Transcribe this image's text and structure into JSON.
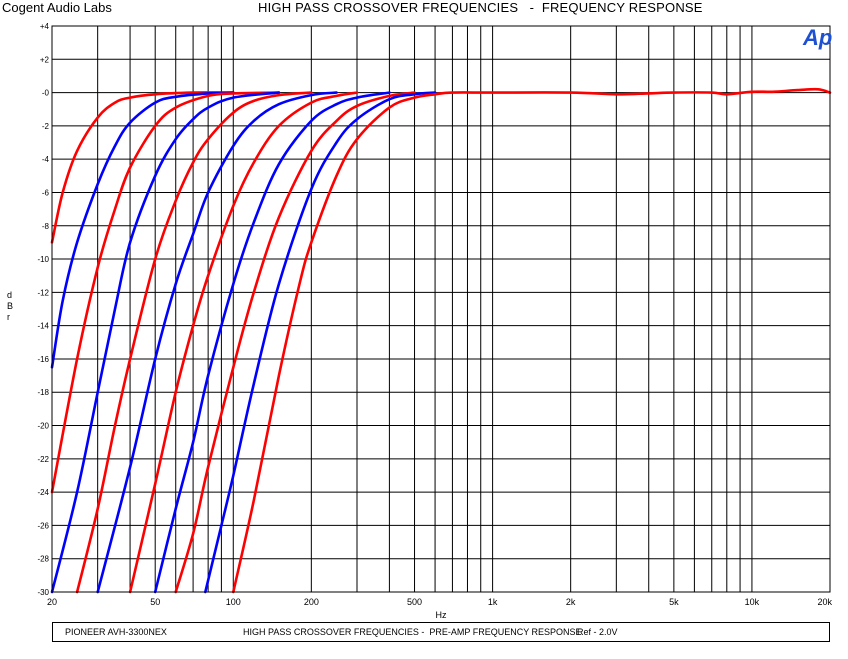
{
  "header": {
    "company": "Cogent Audio Labs",
    "title": "HIGH PASS CROSSOVER FREQUENCIES   -  FREQUENCY RESPONSE",
    "logo_text": "Ap"
  },
  "footer": {
    "model": "PIONEER AVH-3300NEX",
    "description": "HIGH PASS CROSSOVER FREQUENCIES -  PRE-AMP FREQUENCY RESPONSE",
    "reference": "Ref - 2.0V"
  },
  "colors": {
    "red": "#ff0000",
    "blue": "#0000ff",
    "grid": "#000000",
    "logo": "#1e50d2"
  },
  "chart_data": {
    "type": "line",
    "x_scale": "log",
    "xlim": [
      20,
      20000
    ],
    "ylim": [
      -30,
      4
    ],
    "grid": true,
    "xlabel": "Hz",
    "ylabel": "d B r",
    "x_ticks": [
      {
        "value": 20,
        "label": "20"
      },
      {
        "value": 50,
        "label": "50"
      },
      {
        "value": 100,
        "label": "100"
      },
      {
        "value": 200,
        "label": "200"
      },
      {
        "value": 500,
        "label": "500"
      },
      {
        "value": 1000,
        "label": "1k"
      },
      {
        "value": 2000,
        "label": "2k"
      },
      {
        "value": 5000,
        "label": "5k"
      },
      {
        "value": 10000,
        "label": "10k"
      },
      {
        "value": 20000,
        "label": "20k"
      }
    ],
    "y_ticks": [
      {
        "value": 4,
        "label": "+4"
      },
      {
        "value": 2,
        "label": "+2"
      },
      {
        "value": 0,
        "label": "-0"
      },
      {
        "value": -2,
        "label": "-2"
      },
      {
        "value": -4,
        "label": "-4"
      },
      {
        "value": -6,
        "label": "-6"
      },
      {
        "value": -8,
        "label": "-8"
      },
      {
        "value": -10,
        "label": "-10"
      },
      {
        "value": -12,
        "label": "-12"
      },
      {
        "value": -14,
        "label": "-14"
      },
      {
        "value": -16,
        "label": "-16"
      },
      {
        "value": -18,
        "label": "-18"
      },
      {
        "value": -20,
        "label": "-20"
      },
      {
        "value": -22,
        "label": "-22"
      },
      {
        "value": -24,
        "label": "-24"
      },
      {
        "value": -26,
        "label": "-26"
      },
      {
        "value": -28,
        "label": "-28"
      },
      {
        "value": -30,
        "label": "-30"
      }
    ],
    "series": [
      {
        "color": "red",
        "points": [
          [
            20,
            -9
          ],
          [
            22,
            -6
          ],
          [
            25,
            -3.5
          ],
          [
            30,
            -1.5
          ],
          [
            35,
            -0.6
          ],
          [
            40,
            -0.3
          ],
          [
            50,
            -0.1
          ],
          [
            70,
            0
          ],
          [
            100,
            0
          ]
        ]
      },
      {
        "color": "blue",
        "points": [
          [
            20,
            -16.5
          ],
          [
            22,
            -12.5
          ],
          [
            25,
            -9
          ],
          [
            30,
            -5.5
          ],
          [
            35,
            -3.2
          ],
          [
            40,
            -1.8
          ],
          [
            50,
            -0.6
          ],
          [
            60,
            -0.25
          ],
          [
            80,
            -0.05
          ],
          [
            100,
            0
          ]
        ]
      },
      {
        "color": "red",
        "points": [
          [
            20,
            -24
          ],
          [
            25,
            -16
          ],
          [
            30,
            -10.5
          ],
          [
            35,
            -7
          ],
          [
            40,
            -4.5
          ],
          [
            50,
            -2
          ],
          [
            60,
            -0.9
          ],
          [
            80,
            -0.2
          ],
          [
            100,
            -0.05
          ],
          [
            150,
            0
          ]
        ]
      },
      {
        "color": "blue",
        "points": [
          [
            20,
            -30
          ],
          [
            25,
            -24
          ],
          [
            30,
            -18
          ],
          [
            35,
            -13
          ],
          [
            40,
            -9
          ],
          [
            50,
            -5
          ],
          [
            60,
            -2.8
          ],
          [
            70,
            -1.6
          ],
          [
            80,
            -0.9
          ],
          [
            100,
            -0.3
          ],
          [
            150,
            0
          ]
        ]
      },
      {
        "color": "red",
        "points": [
          [
            25,
            -30
          ],
          [
            30,
            -25
          ],
          [
            35,
            -20
          ],
          [
            40,
            -16
          ],
          [
            50,
            -10
          ],
          [
            60,
            -6.5
          ],
          [
            70,
            -4.2
          ],
          [
            80,
            -2.8
          ],
          [
            100,
            -1.2
          ],
          [
            120,
            -0.5
          ],
          [
            150,
            -0.15
          ],
          [
            200,
            0
          ]
        ]
      },
      {
        "color": "blue",
        "points": [
          [
            30,
            -30
          ],
          [
            40,
            -22.5
          ],
          [
            50,
            -16
          ],
          [
            60,
            -11.5
          ],
          [
            70,
            -8.5
          ],
          [
            80,
            -6
          ],
          [
            100,
            -3.2
          ],
          [
            120,
            -1.7
          ],
          [
            150,
            -0.7
          ],
          [
            200,
            -0.15
          ],
          [
            250,
            0
          ]
        ]
      },
      {
        "color": "red",
        "points": [
          [
            40,
            -30
          ],
          [
            50,
            -23.5
          ],
          [
            60,
            -18
          ],
          [
            70,
            -14
          ],
          [
            80,
            -11
          ],
          [
            100,
            -6.8
          ],
          [
            120,
            -4.2
          ],
          [
            150,
            -2
          ],
          [
            200,
            -0.6
          ],
          [
            250,
            -0.2
          ],
          [
            300,
            0
          ]
        ]
      },
      {
        "color": "blue",
        "points": [
          [
            50,
            -30
          ],
          [
            60,
            -25
          ],
          [
            70,
            -21
          ],
          [
            80,
            -17
          ],
          [
            100,
            -11.5
          ],
          [
            120,
            -7.8
          ],
          [
            150,
            -4.3
          ],
          [
            200,
            -1.7
          ],
          [
            250,
            -0.7
          ],
          [
            300,
            -0.3
          ],
          [
            400,
            0
          ]
        ]
      },
      {
        "color": "red",
        "points": [
          [
            60,
            -30
          ],
          [
            70,
            -26.5
          ],
          [
            80,
            -22.5
          ],
          [
            100,
            -16.5
          ],
          [
            120,
            -12
          ],
          [
            150,
            -7.5
          ],
          [
            200,
            -3.5
          ],
          [
            250,
            -1.7
          ],
          [
            300,
            -0.8
          ],
          [
            400,
            -0.2
          ],
          [
            500,
            0
          ]
        ]
      },
      {
        "color": "blue",
        "points": [
          [
            78,
            -30
          ],
          [
            90,
            -26
          ],
          [
            100,
            -23
          ],
          [
            120,
            -17.5
          ],
          [
            150,
            -11.5
          ],
          [
            200,
            -5.8
          ],
          [
            250,
            -3
          ],
          [
            300,
            -1.6
          ],
          [
            400,
            -0.4
          ],
          [
            500,
            -0.1
          ],
          [
            600,
            0
          ]
        ]
      },
      {
        "color": "red",
        "points": [
          [
            100,
            -30
          ],
          [
            120,
            -24.5
          ],
          [
            150,
            -17
          ],
          [
            180,
            -11.5
          ],
          [
            200,
            -9
          ],
          [
            250,
            -5
          ],
          [
            300,
            -2.8
          ],
          [
            400,
            -0.9
          ],
          [
            500,
            -0.3
          ],
          [
            600,
            -0.1
          ],
          [
            700,
            0
          ],
          [
            1000,
            0
          ],
          [
            2000,
            0
          ],
          [
            3000,
            -0.1
          ],
          [
            4000,
            -0.05
          ],
          [
            5000,
            0
          ],
          [
            7000,
            0
          ],
          [
            8000,
            -0.1
          ],
          [
            10000,
            0.05
          ],
          [
            12000,
            0.05
          ],
          [
            15000,
            0.15
          ],
          [
            18000,
            0.2
          ],
          [
            20000,
            0
          ]
        ]
      }
    ]
  }
}
